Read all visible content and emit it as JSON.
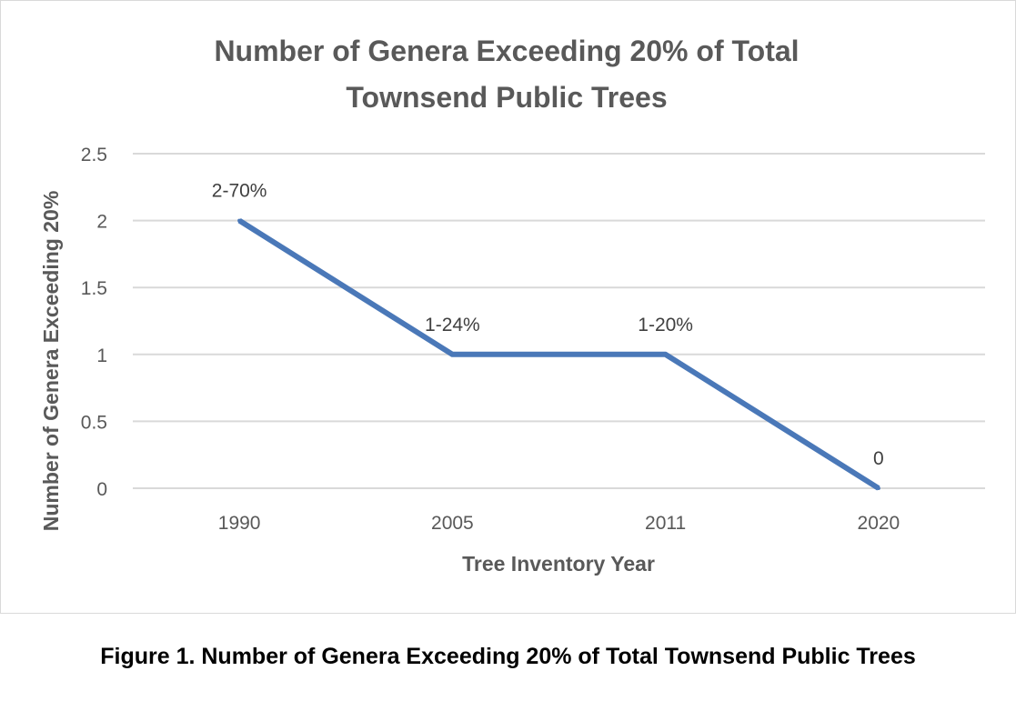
{
  "chart_data": {
    "type": "line",
    "title_lines": [
      "Number of Genera Exceeding 20% of Total",
      "Townsend Public Trees"
    ],
    "xlabel": "Tree Inventory Year",
    "ylabel": "Number of Genera Exceeding 20%",
    "categories": [
      "1990",
      "2005",
      "2011",
      "2020"
    ],
    "series": [
      {
        "values": [
          2,
          1,
          1,
          0
        ],
        "data_labels": [
          "2-70%",
          "1-24%",
          "1-20%",
          "0"
        ]
      }
    ],
    "ylim": [
      0,
      2.5
    ],
    "yticks": [
      "0",
      "0.5",
      "1",
      "1.5",
      "2",
      "2.5"
    ],
    "grid": true,
    "line_color": "#4a78b8",
    "grid_color": "#d9d9d9",
    "text_color": "#595959"
  },
  "caption": "Figure 1. Number of Genera Exceeding 20% of Total Townsend Public Trees"
}
